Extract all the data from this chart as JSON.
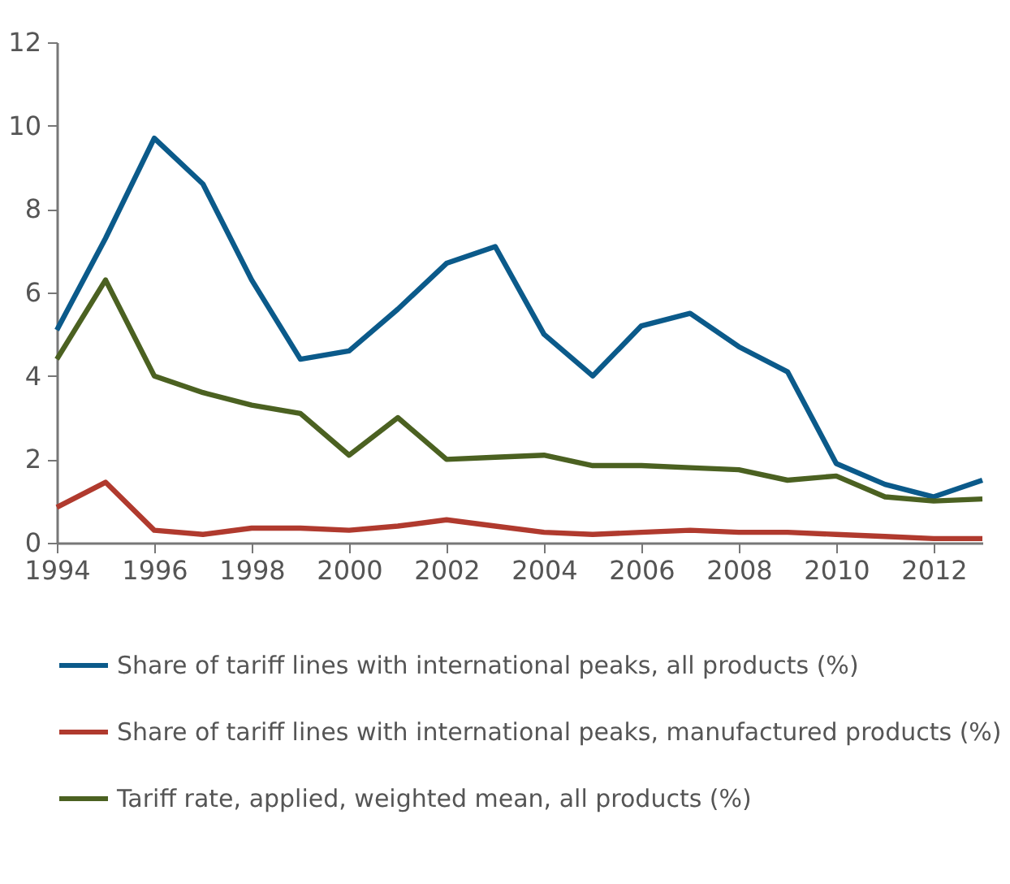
{
  "chart_data": {
    "type": "line",
    "x": [
      1994,
      1995,
      1996,
      1997,
      1998,
      1999,
      2000,
      2001,
      2002,
      2003,
      2004,
      2005,
      2006,
      2007,
      2008,
      2009,
      2010,
      2011,
      2012,
      2013
    ],
    "series": [
      {
        "name": "Share of tariff lines with international peaks, all products (%)",
        "color": "#0b5a8a",
        "values": [
          5.1,
          7.3,
          9.7,
          8.6,
          6.3,
          4.4,
          4.6,
          5.6,
          6.7,
          7.1,
          5.0,
          4.0,
          5.2,
          5.5,
          4.7,
          4.1,
          1.9,
          1.4,
          1.1,
          1.5
        ]
      },
      {
        "name": "Share of tariff lines with international peaks, manufactured products (%)",
        "color": "#b03a2e",
        "values": [
          0.85,
          1.45,
          0.3,
          0.2,
          0.35,
          0.35,
          0.3,
          0.4,
          0.55,
          0.4,
          0.25,
          0.2,
          0.25,
          0.3,
          0.25,
          0.25,
          0.2,
          0.15,
          0.1,
          0.1
        ]
      },
      {
        "name": "Tariff rate, applied, weighted mean, all products (%)",
        "color": "#4b6121",
        "values": [
          4.4,
          6.3,
          4.0,
          3.6,
          3.3,
          3.1,
          2.1,
          3.0,
          2.0,
          2.05,
          2.1,
          1.85,
          1.85,
          1.8,
          1.75,
          1.5,
          1.6,
          1.1,
          1.0,
          1.05
        ]
      }
    ],
    "xlim": [
      1994,
      2013
    ],
    "xticks": [
      1994,
      1996,
      1998,
      2000,
      2002,
      2004,
      2006,
      2008,
      2010,
      2012
    ],
    "ylim": [
      0,
      12
    ],
    "yticks": [
      0,
      2,
      4,
      6,
      8,
      10,
      12
    ],
    "grid": false,
    "legend": "bottom",
    "marker": "none",
    "line_style": "solid"
  }
}
